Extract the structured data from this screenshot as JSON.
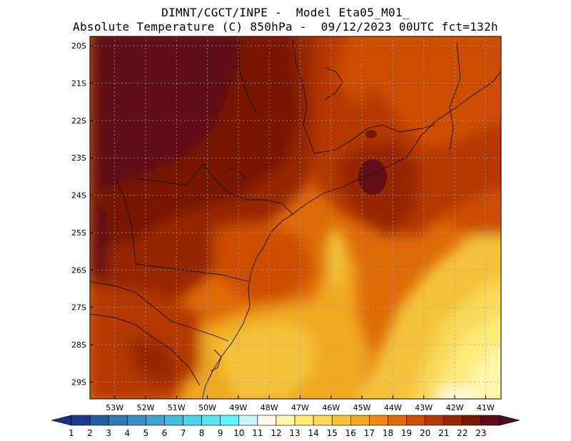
{
  "header": {
    "line1": "DIMNT/CGCT/INPE -  Model Eta05_M01_",
    "line2": "Absolute Temperature (C) 850hPa -  09/12/2023 00UTC fct=132h"
  },
  "map": {
    "lon_range": [
      -53.8,
      -40.5
    ],
    "lat_range": [
      -29.45,
      -19.75
    ],
    "lat_ticks": [
      "20S",
      "21S",
      "22S",
      "23S",
      "24S",
      "25S",
      "26S",
      "27S",
      "28S",
      "29S"
    ],
    "lat_values": [
      -20,
      -21,
      -22,
      -23,
      -24,
      -25,
      -26,
      -27,
      -28,
      -29
    ],
    "lon_ticks": [
      "53W",
      "52W",
      "51W",
      "50W",
      "49W",
      "48W",
      "47W",
      "46W",
      "45W",
      "44W",
      "43W",
      "42W",
      "41W"
    ],
    "lon_values": [
      -53,
      -52,
      -51,
      -50,
      -49,
      -48,
      -47,
      -46,
      -45,
      -44,
      -43,
      -42,
      -41
    ],
    "grid": true,
    "field": "temperature 850hPa (C), shaded"
  },
  "colorbar": {
    "labels": [
      "1",
      "2",
      "3",
      "4",
      "5",
      "6",
      "7",
      "8",
      "9",
      "10",
      "11",
      "12",
      "13",
      "14",
      "15",
      "16",
      "17",
      "18",
      "19",
      "20",
      "21",
      "22",
      "23"
    ],
    "colors": [
      "#1e3a8c",
      "#215e9e",
      "#2b7bb6",
      "#3a8fc2",
      "#3ba6d0",
      "#42bde0",
      "#4bd3ec",
      "#55e6f4",
      "#60f5fb",
      "#ccf5fb",
      "#fffbe8",
      "#fff6a8",
      "#fdea78",
      "#f8d95a",
      "#f4c239",
      "#f0a820",
      "#ea8a12",
      "#df6b08",
      "#cd4e05",
      "#b43803",
      "#962703",
      "#781903",
      "#5e0d17"
    ],
    "under_color": "#1b2f80",
    "over_color": "#4a0f1c"
  }
}
